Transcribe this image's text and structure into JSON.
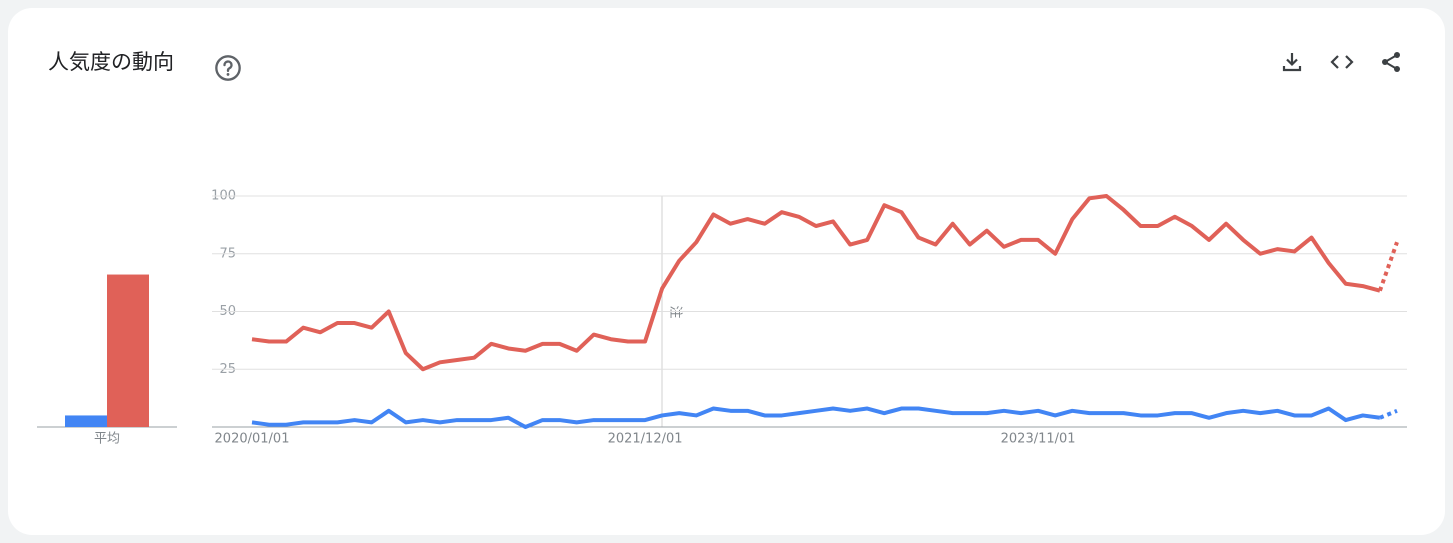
{
  "header": {
    "title": "人気度の動向"
  },
  "chart_data": [
    {
      "type": "bar",
      "categories": [
        "平均"
      ],
      "ylim": [
        0,
        100
      ],
      "series": [
        {
          "color": "#4285f4",
          "values": [
            5
          ]
        },
        {
          "color": "#e06158",
          "values": [
            66
          ]
        }
      ]
    },
    {
      "type": "line",
      "annotation": "注",
      "ylim": [
        0,
        100
      ],
      "yticks": [
        25,
        50,
        75,
        100
      ],
      "grid": true,
      "last_point_partial": true,
      "categories": [
        "2020/01/01",
        null,
        null,
        null,
        null,
        null,
        null,
        null,
        null,
        null,
        null,
        null,
        null,
        null,
        null,
        null,
        null,
        null,
        null,
        null,
        null,
        null,
        null,
        "2021/12/01",
        null,
        null,
        null,
        null,
        null,
        null,
        null,
        null,
        null,
        null,
        null,
        null,
        null,
        null,
        null,
        null,
        null,
        null,
        null,
        null,
        null,
        null,
        "2023/11/01",
        null,
        null,
        null,
        null,
        null,
        null,
        null,
        null,
        null,
        null,
        null,
        null,
        null,
        null,
        null,
        null,
        null,
        null,
        null,
        null,
        null
      ],
      "series": [
        {
          "color": "#e06158",
          "values": [
            38,
            37,
            37,
            43,
            41,
            45,
            45,
            43,
            50,
            32,
            25,
            28,
            29,
            30,
            36,
            34,
            33,
            36,
            36,
            33,
            40,
            38,
            37,
            37,
            60,
            72,
            80,
            92,
            88,
            90,
            88,
            93,
            91,
            87,
            89,
            79,
            81,
            96,
            93,
            82,
            79,
            88,
            79,
            85,
            78,
            81,
            81,
            75,
            90,
            99,
            100,
            94,
            87,
            87,
            91,
            87,
            81,
            88,
            81,
            75,
            77,
            76,
            82,
            71,
            62,
            61,
            59,
            80
          ]
        },
        {
          "color": "#4285f4",
          "values": [
            2,
            1,
            1,
            2,
            2,
            2,
            3,
            2,
            7,
            2,
            3,
            2,
            3,
            3,
            3,
            4,
            0,
            3,
            3,
            2,
            3,
            3,
            3,
            3,
            5,
            6,
            5,
            8,
            7,
            7,
            5,
            5,
            6,
            7,
            8,
            7,
            8,
            6,
            8,
            8,
            7,
            6,
            6,
            6,
            7,
            6,
            7,
            5,
            7,
            6,
            6,
            6,
            5,
            5,
            6,
            6,
            4,
            6,
            7,
            6,
            7,
            5,
            5,
            8,
            3,
            5,
            4,
            7
          ]
        }
      ]
    }
  ]
}
